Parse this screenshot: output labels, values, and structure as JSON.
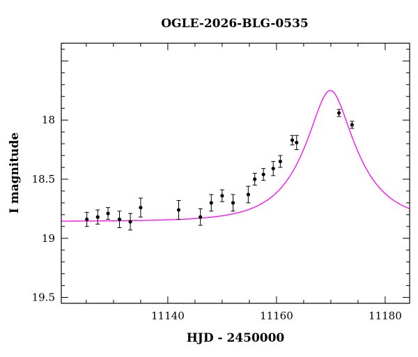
{
  "chart_data": {
    "type": "scatter",
    "title": "OGLE-2026-BLG-0535",
    "xlabel": "HJD - 2450000",
    "ylabel": "I magnitude",
    "xlim": [
      11120.4,
      11184.5
    ],
    "ylim": [
      19.55,
      17.35
    ],
    "y_inverted": true,
    "grid": false,
    "x_ticks": [
      {
        "value": 11140,
        "label": "11140"
      },
      {
        "value": 11160,
        "label": "11160"
      },
      {
        "value": 11180,
        "label": "11180"
      }
    ],
    "y_ticks": [
      {
        "value": 18,
        "label": "18"
      },
      {
        "value": 18.5,
        "label": "18.5"
      },
      {
        "value": 19,
        "label": "19"
      },
      {
        "value": 19.5,
        "label": "19.5"
      }
    ],
    "series": [
      {
        "kind": "points",
        "color": "#000000",
        "points": [
          {
            "x": 11125.1,
            "y": 18.84,
            "err": 0.06
          },
          {
            "x": 11127.1,
            "y": 18.82,
            "err": 0.06
          },
          {
            "x": 11129.0,
            "y": 18.79,
            "err": 0.05
          },
          {
            "x": 11131.1,
            "y": 18.84,
            "err": 0.07
          },
          {
            "x": 11133.1,
            "y": 18.86,
            "err": 0.07
          },
          {
            "x": 11135.0,
            "y": 18.74,
            "err": 0.08
          },
          {
            "x": 11142.0,
            "y": 18.76,
            "err": 0.08
          },
          {
            "x": 11146.0,
            "y": 18.82,
            "err": 0.07
          },
          {
            "x": 11148.0,
            "y": 18.7,
            "err": 0.07
          },
          {
            "x": 11150.0,
            "y": 18.64,
            "err": 0.05
          },
          {
            "x": 11152.0,
            "y": 18.7,
            "err": 0.07
          },
          {
            "x": 11154.8,
            "y": 18.63,
            "err": 0.07
          },
          {
            "x": 11156.0,
            "y": 18.5,
            "err": 0.05
          },
          {
            "x": 11157.6,
            "y": 18.46,
            "err": 0.05
          },
          {
            "x": 11159.4,
            "y": 18.41,
            "err": 0.06
          },
          {
            "x": 11160.7,
            "y": 18.35,
            "err": 0.05
          },
          {
            "x": 11162.9,
            "y": 18.17,
            "err": 0.04
          },
          {
            "x": 11163.7,
            "y": 18.19,
            "err": 0.06
          },
          {
            "x": 11171.5,
            "y": 17.94,
            "err": 0.03
          },
          {
            "x": 11173.9,
            "y": 18.04,
            "err": 0.03
          }
        ]
      },
      {
        "kind": "model",
        "color": "#ff00ff",
        "model": {
          "t0": 11169.9,
          "tE": 9.1,
          "u0": 0.38,
          "baseline_mag": 18.857
        }
      }
    ]
  }
}
